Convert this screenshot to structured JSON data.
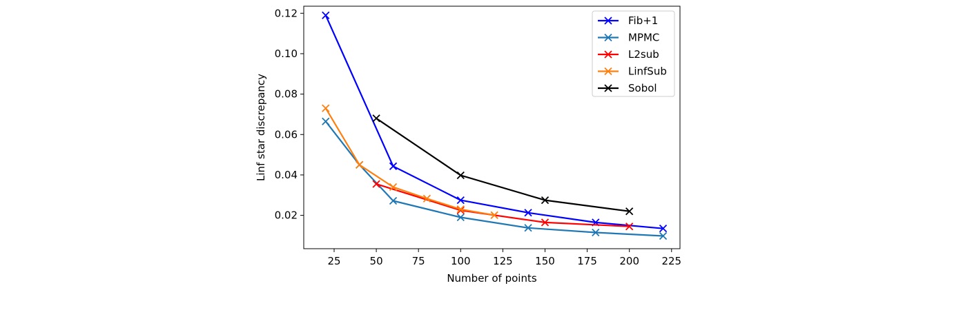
{
  "chart_data": {
    "type": "line",
    "title": "",
    "xlabel": "Number of points",
    "ylabel": "Linf star discrepancy",
    "xlim": [
      7,
      230
    ],
    "ylim": [
      0.0035,
      0.1235
    ],
    "xticks": [
      25,
      50,
      75,
      100,
      125,
      150,
      175,
      200,
      225
    ],
    "yticks": [
      0.02,
      0.04,
      0.06,
      0.08,
      0.1,
      0.12
    ],
    "ytick_labels": [
      "0.02",
      "0.04",
      "0.06",
      "0.08",
      "0.10",
      "0.12"
    ],
    "grid": false,
    "legend_position": "top-right",
    "marker": "x",
    "series": [
      {
        "name": "Fib+1",
        "color": "#0000ff",
        "x": [
          20,
          60,
          100,
          140,
          180,
          220
        ],
        "y": [
          0.119,
          0.0443,
          0.0275,
          0.0213,
          0.0165,
          0.0135
        ]
      },
      {
        "name": "MPMC",
        "color": "#1f77b4",
        "x": [
          20,
          40,
          60,
          100,
          140,
          180,
          220
        ],
        "y": [
          0.0665,
          0.045,
          0.0272,
          0.019,
          0.0138,
          0.0115,
          0.0098
        ]
      },
      {
        "name": "L2sub",
        "color": "#ff0000",
        "x": [
          50,
          100,
          150,
          200
        ],
        "y": [
          0.0355,
          0.0225,
          0.0165,
          0.0145
        ]
      },
      {
        "name": "LinfSub",
        "color": "#ff7f0e",
        "x": [
          20,
          40,
          60,
          80,
          100,
          120
        ],
        "y": [
          0.073,
          0.045,
          0.034,
          0.0283,
          0.023,
          0.0201
        ]
      },
      {
        "name": "Sobol",
        "color": "#000000",
        "x": [
          50,
          100,
          150,
          200
        ],
        "y": [
          0.068,
          0.0398,
          0.0275,
          0.022
        ]
      }
    ]
  }
}
